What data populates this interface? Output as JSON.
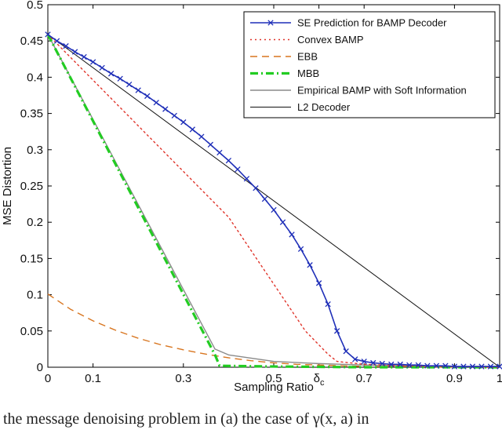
{
  "chart_data": {
    "type": "line",
    "xlabel": "Sampling Ratio",
    "ylabel": "MSE Distortion",
    "xlim": [
      0,
      1
    ],
    "ylim": [
      0,
      0.5
    ],
    "xticks": [
      0,
      0.1,
      0.3,
      0.5,
      0.7,
      0.9,
      1
    ],
    "xtick_labels": [
      "0",
      "0.1",
      "0.3",
      "0.5",
      "0.7",
      "0.9",
      "1"
    ],
    "special_tick": {
      "x": 0.6,
      "label": "δ",
      "subscript": "c"
    },
    "yticks": [
      0,
      0.05,
      0.1,
      0.15,
      0.2,
      0.25,
      0.3,
      0.35,
      0.4,
      0.45,
      0.5
    ],
    "ytick_labels": [
      "0",
      "0.05",
      "0.1",
      "0.15",
      "0.2",
      "0.25",
      "0.3",
      "0.35",
      "0.4",
      "0.45",
      "0.5"
    ],
    "grid": false,
    "legend_position": "top-right",
    "series": [
      {
        "name": "SE Prediction for BAMP Decoder",
        "color": "#1f2fb8",
        "style": "solid",
        "marker": "x",
        "x": [
          0,
          0.02,
          0.04,
          0.06,
          0.08,
          0.1,
          0.12,
          0.14,
          0.16,
          0.18,
          0.2,
          0.22,
          0.24,
          0.26,
          0.28,
          0.3,
          0.32,
          0.34,
          0.36,
          0.38,
          0.4,
          0.42,
          0.44,
          0.46,
          0.48,
          0.5,
          0.52,
          0.54,
          0.56,
          0.58,
          0.6,
          0.62,
          0.64,
          0.66,
          0.68,
          0.7,
          0.72,
          0.74,
          0.76,
          0.78,
          0.8,
          0.82,
          0.84,
          0.86,
          0.88,
          0.9,
          0.92,
          0.94,
          0.96,
          0.98,
          1.0
        ],
        "y": [
          0.459,
          0.45,
          0.443,
          0.435,
          0.428,
          0.421,
          0.413,
          0.405,
          0.398,
          0.39,
          0.382,
          0.374,
          0.365,
          0.356,
          0.347,
          0.338,
          0.328,
          0.318,
          0.307,
          0.296,
          0.285,
          0.273,
          0.26,
          0.247,
          0.232,
          0.217,
          0.2,
          0.183,
          0.163,
          0.141,
          0.116,
          0.087,
          0.05,
          0.022,
          0.011,
          0.008,
          0.006,
          0.005,
          0.004,
          0.004,
          0.003,
          0.003,
          0.002,
          0.002,
          0.002,
          0.001,
          0.001,
          0.001,
          0.001,
          0.001,
          0.001
        ]
      },
      {
        "name": "Convex BAMP",
        "color": "#e0342a",
        "style": "dotted",
        "x": [
          0,
          0.4,
          0.57,
          0.62,
          0.64,
          0.7,
          0.8,
          0.9,
          1.0
        ],
        "y": [
          0.459,
          0.207,
          0.05,
          0.018,
          0.008,
          0.004,
          0.002,
          0.001,
          0.0
        ]
      },
      {
        "name": "EBB",
        "color": "#d8751f",
        "style": "dashed",
        "x": [
          0,
          0.05,
          0.1,
          0.15,
          0.2,
          0.25,
          0.3,
          0.35,
          0.4,
          0.45,
          0.5,
          0.55,
          0.6,
          0.65,
          0.7,
          0.8,
          0.9,
          1.0
        ],
        "y": [
          0.101,
          0.08,
          0.064,
          0.051,
          0.04,
          0.031,
          0.024,
          0.018,
          0.013,
          0.009,
          0.006,
          0.004,
          0.003,
          0.002,
          0.001,
          0.001,
          0.0,
          0.0
        ]
      },
      {
        "name": "MBB",
        "color": "#22cc22",
        "style": "dashdot",
        "x": [
          0,
          0.37,
          0.38,
          0.5,
          0.7,
          0.9,
          1.0
        ],
        "y": [
          0.459,
          0.017,
          0.002,
          0.001,
          0.0,
          0.0,
          0.0
        ]
      },
      {
        "name": "Empirical BAMP with Soft Information",
        "color": "#8a8a8a",
        "style": "solid",
        "x": [
          0,
          0.37,
          0.4,
          0.5,
          0.6,
          0.7,
          0.8,
          0.9,
          1.0
        ],
        "y": [
          0.459,
          0.025,
          0.017,
          0.008,
          0.005,
          0.003,
          0.002,
          0.001,
          0.001
        ]
      },
      {
        "name": "L2 Decoder",
        "color": "#111111",
        "style": "solid",
        "x": [
          0,
          1.0
        ],
        "y": [
          0.459,
          0.0
        ]
      }
    ]
  },
  "caption_text": "the message denoising problem in (a) the case of γ(x, a) in"
}
